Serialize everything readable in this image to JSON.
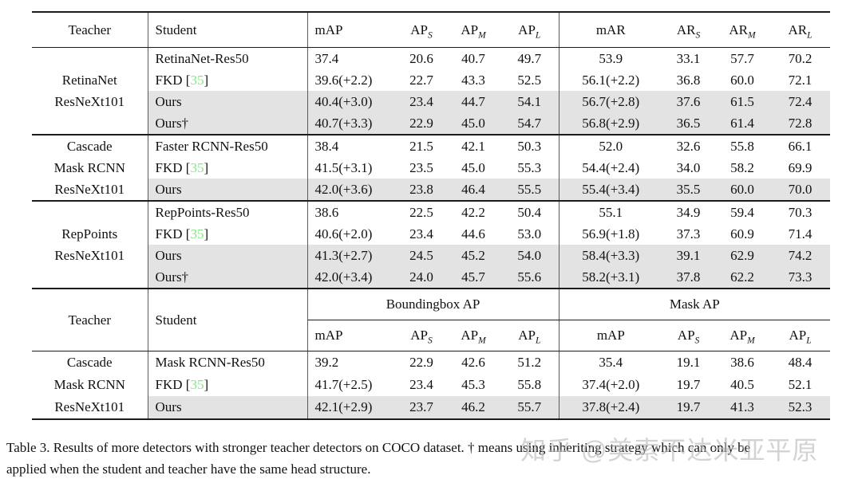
{
  "colors": {
    "rule": "#1c1c1c",
    "divider": "#5a5a5a",
    "highlight_row": "#e3e3e3",
    "citation_green": "#84e784",
    "watermark_gray": "#b9b9b9"
  },
  "caption": {
    "line1": "Table 3. Results of more detectors with stronger teacher detectors on COCO dataset. † means using inheriting strategy which can only be",
    "line2": "applied when the student and teacher have the same head structure."
  },
  "watermark": {
    "text": "知乎 @美索不达米亚平原"
  },
  "tables": [
    {
      "id": "main",
      "header": {
        "teacher": "Teacher",
        "student": "Student",
        "metrics": [
          "mAP",
          "AP_S",
          "AP_M",
          "AP_L",
          "mAR",
          "AR_S",
          "AR_M",
          "AR_L"
        ]
      },
      "sections": [
        {
          "teacher_lines": [
            "RetinaNet",
            "ResNeXt101"
          ],
          "rows": [
            {
              "student": "RetinaNet-Res50",
              "cite": null,
              "highlight": false,
              "values": [
                "37.4",
                "20.6",
                "40.7",
                "49.7",
                "53.9",
                "33.1",
                "57.7",
                "70.2"
              ]
            },
            {
              "student": "FKD",
              "cite": "35",
              "highlight": false,
              "values": [
                "39.6(+2.2)",
                "22.7",
                "43.3",
                "52.5",
                "56.1(+2.2)",
                "36.8",
                "60.0",
                "72.1"
              ]
            },
            {
              "student": "Ours",
              "cite": null,
              "highlight": true,
              "values": [
                "40.4(+3.0)",
                "23.4",
                "44.7",
                "54.1",
                "56.7(+2.8)",
                "37.6",
                "61.5",
                "72.4"
              ]
            },
            {
              "student": "Ours†",
              "cite": null,
              "highlight": true,
              "values": [
                "40.7(+3.3)",
                "22.9",
                "45.0",
                "54.7",
                "56.8(+2.9)",
                "36.5",
                "61.4",
                "72.8"
              ]
            }
          ]
        },
        {
          "teacher_lines": [
            "Cascade",
            "Mask RCNN",
            "ResNeXt101"
          ],
          "rows": [
            {
              "student": "Faster RCNN-Res50",
              "cite": null,
              "highlight": false,
              "values": [
                "38.4",
                "21.5",
                "42.1",
                "50.3",
                "52.0",
                "32.6",
                "55.8",
                "66.1"
              ]
            },
            {
              "student": "FKD",
              "cite": "35",
              "highlight": false,
              "values": [
                "41.5(+3.1)",
                "23.5",
                "45.0",
                "55.3",
                "54.4(+2.4)",
                "34.0",
                "58.2",
                "69.9"
              ]
            },
            {
              "student": "Ours",
              "cite": null,
              "highlight": true,
              "values": [
                "42.0(+3.6)",
                "23.8",
                "46.4",
                "55.5",
                "55.4(+3.4)",
                "35.5",
                "60.0",
                "70.0"
              ]
            }
          ]
        },
        {
          "teacher_lines": [
            "RepPoints",
            "ResNeXt101"
          ],
          "rows": [
            {
              "student": "RepPoints-Res50",
              "cite": null,
              "highlight": false,
              "values": [
                "38.6",
                "22.5",
                "42.2",
                "50.4",
                "55.1",
                "34.9",
                "59.4",
                "70.3"
              ]
            },
            {
              "student": "FKD",
              "cite": "35",
              "highlight": false,
              "values": [
                "40.6(+2.0)",
                "23.4",
                "44.6",
                "53.0",
                "56.9(+1.8)",
                "37.3",
                "60.9",
                "71.4"
              ]
            },
            {
              "student": "Ours",
              "cite": null,
              "highlight": true,
              "values": [
                "41.3(+2.7)",
                "24.5",
                "45.2",
                "54.0",
                "58.4(+3.3)",
                "39.1",
                "62.9",
                "74.2"
              ]
            },
            {
              "student": "Ours†",
              "cite": null,
              "highlight": true,
              "values": [
                "42.0(+3.4)",
                "24.0",
                "45.7",
                "55.6",
                "58.2(+3.1)",
                "37.8",
                "62.2",
                "73.3"
              ]
            }
          ]
        }
      ]
    },
    {
      "id": "mask",
      "header": {
        "teacher": "Teacher",
        "student": "Student",
        "groups": [
          "Boundingbox AP",
          "Mask AP"
        ],
        "metrics": [
          "mAP",
          "AP_S",
          "AP_M",
          "AP_L",
          "mAP",
          "AP_S",
          "AP_M",
          "AP_L"
        ]
      },
      "sections": [
        {
          "teacher_lines": [
            "Cascade",
            "Mask RCNN",
            "ResNeXt101"
          ],
          "rows": [
            {
              "student": "Mask RCNN-Res50",
              "cite": null,
              "highlight": false,
              "values": [
                "39.2",
                "22.9",
                "42.6",
                "51.2",
                "35.4",
                "19.1",
                "38.6",
                "48.4"
              ]
            },
            {
              "student": "FKD",
              "cite": "35",
              "highlight": false,
              "values": [
                "41.7(+2.5)",
                "23.4",
                "45.3",
                "55.8",
                "37.4(+2.0)",
                "19.7",
                "40.5",
                "52.1"
              ]
            },
            {
              "student": "Ours",
              "cite": null,
              "highlight": true,
              "values": [
                "42.1(+2.9)",
                "23.7",
                "46.2",
                "55.7",
                "37.8(+2.4)",
                "19.7",
                "41.3",
                "52.3"
              ]
            }
          ]
        }
      ]
    }
  ]
}
